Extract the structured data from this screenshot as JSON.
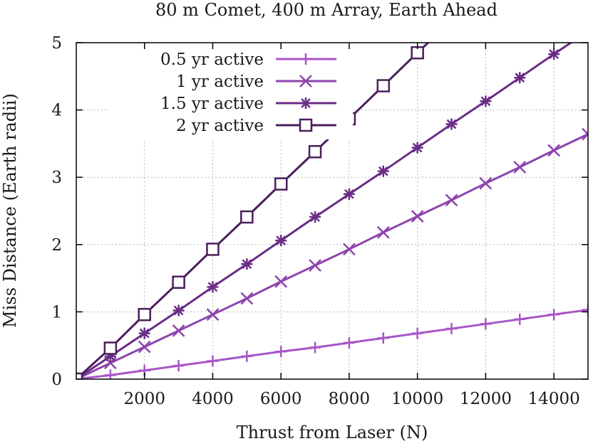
{
  "chart_data": {
    "type": "line",
    "title": "80 m Comet, 400 m Array, Earth Ahead",
    "xlabel": "Thrust from Laser (N)",
    "ylabel": "Miss Distance (Earth radii)",
    "xlim": [
      0,
      15000
    ],
    "ylim": [
      0,
      5
    ],
    "xticks": [
      2000,
      4000,
      6000,
      8000,
      10000,
      12000,
      14000
    ],
    "xtick_labels": [
      "2000",
      "4000",
      "6000",
      "8000",
      "10000",
      "12000",
      "14000"
    ],
    "yticks": [
      0,
      1,
      2,
      3,
      4,
      5
    ],
    "ytick_labels": [
      "0",
      "1",
      "2",
      "3",
      "4",
      "5"
    ],
    "grid": true,
    "legend_position": "top-left",
    "series": [
      {
        "name": "0.5 yr active",
        "marker": "plus",
        "color": "#a855c8",
        "x": [
          0,
          1000,
          2000,
          3000,
          4000,
          5000,
          6000,
          7000,
          8000,
          9000,
          10000,
          11000,
          12000,
          13000,
          14000,
          15000
        ],
        "y": [
          0,
          0.06,
          0.13,
          0.2,
          0.27,
          0.34,
          0.41,
          0.47,
          0.54,
          0.61,
          0.68,
          0.75,
          0.82,
          0.89,
          0.96,
          1.03
        ]
      },
      {
        "name": "1 yr active",
        "marker": "cross",
        "color": "#8e44ad",
        "x": [
          0,
          1000,
          2000,
          3000,
          4000,
          5000,
          6000,
          7000,
          8000,
          9000,
          10000,
          11000,
          12000,
          13000,
          14000,
          15000
        ],
        "y": [
          0,
          0.24,
          0.48,
          0.72,
          0.96,
          1.2,
          1.45,
          1.69,
          1.93,
          2.18,
          2.42,
          2.66,
          2.91,
          3.15,
          3.4,
          3.64
        ]
      },
      {
        "name": "1.5 yr active",
        "marker": "asterisk",
        "color": "#6a2c85",
        "x": [
          0,
          1000,
          2000,
          3000,
          4000,
          5000,
          6000,
          7000,
          8000,
          9000,
          10000,
          11000,
          12000,
          13000,
          14000,
          15000
        ],
        "y": [
          0,
          0.34,
          0.68,
          1.02,
          1.37,
          1.71,
          2.06,
          2.41,
          2.75,
          3.09,
          3.44,
          3.79,
          4.13,
          4.48,
          4.83,
          5.17
        ]
      },
      {
        "name": "2 yr active",
        "marker": "square",
        "color": "#4a1f5c",
        "x": [
          0,
          1000,
          2000,
          3000,
          4000,
          5000,
          6000,
          7000,
          8000,
          9000,
          10000,
          11000
        ],
        "y": [
          0,
          0.46,
          0.96,
          1.44,
          1.93,
          2.41,
          2.9,
          3.38,
          3.87,
          4.36,
          4.85,
          5.33
        ]
      }
    ]
  }
}
